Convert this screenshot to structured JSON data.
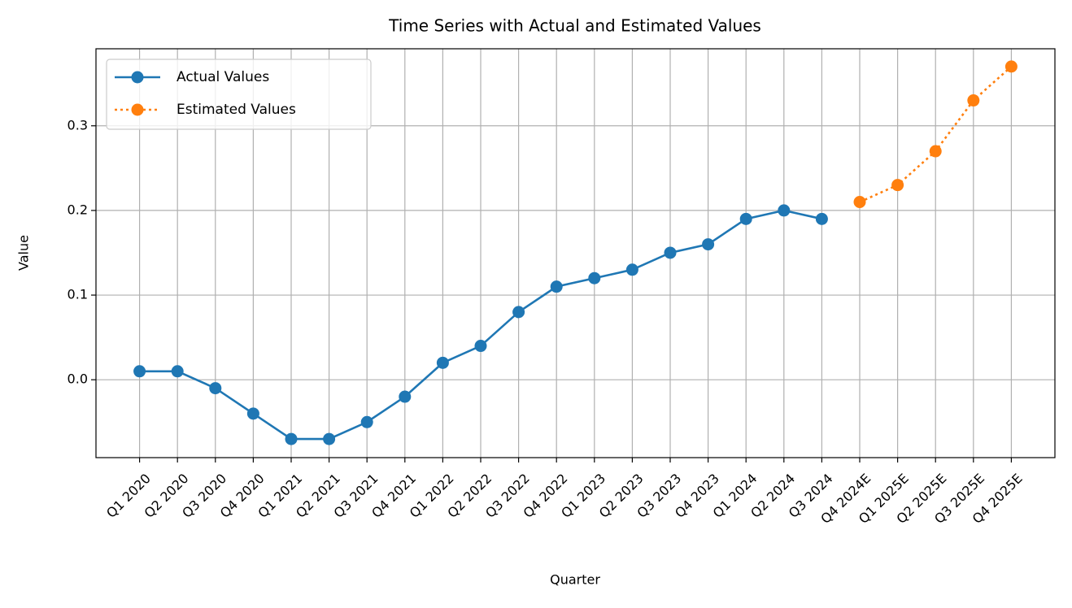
{
  "chart_data": {
    "type": "line",
    "title": "Time Series with Actual and Estimated Values",
    "xlabel": "Quarter",
    "ylabel": "Value",
    "categories": [
      "Q1 2020",
      "Q2 2020",
      "Q3 2020",
      "Q4 2020",
      "Q1 2021",
      "Q2 2021",
      "Q3 2021",
      "Q4 2021",
      "Q1 2022",
      "Q2 2022",
      "Q3 2022",
      "Q4 2022",
      "Q1 2023",
      "Q2 2023",
      "Q3 2023",
      "Q4 2023",
      "Q1 2024",
      "Q2 2024",
      "Q3 2024",
      "Q4 2024E",
      "Q1 2025E",
      "Q2 2025E",
      "Q3 2025E",
      "Q4 2025E"
    ],
    "series": [
      {
        "name": "Actual Values",
        "color": "#1f77b4",
        "linestyle": "solid",
        "values": [
          0.01,
          0.01,
          -0.01,
          -0.04,
          -0.07,
          -0.07,
          -0.05,
          -0.02,
          0.02,
          0.04,
          0.08,
          0.11,
          0.12,
          0.13,
          0.15,
          0.16,
          0.19,
          0.2,
          0.19,
          null,
          null,
          null,
          null,
          null
        ]
      },
      {
        "name": "Estimated Values",
        "color": "#ff7f0e",
        "linestyle": "dotted",
        "values": [
          null,
          null,
          null,
          null,
          null,
          null,
          null,
          null,
          null,
          null,
          null,
          null,
          null,
          null,
          null,
          null,
          null,
          null,
          null,
          0.21,
          0.23,
          0.27,
          0.33,
          0.37
        ]
      }
    ],
    "ylim": [
      -0.092,
      0.391
    ],
    "yticks": [
      {
        "value": 0,
        "label": "0.0"
      },
      0.1,
      0.2,
      0.3
    ],
    "grid": true,
    "legend": "upper left"
  }
}
